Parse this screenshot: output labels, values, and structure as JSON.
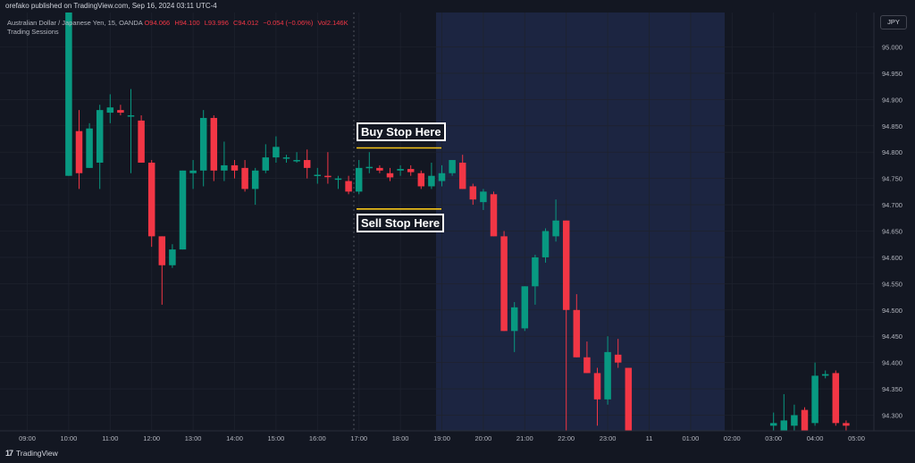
{
  "header": {
    "published": "orefako published on TradingView.com, Sep 16, 2024 03:11 UTC-4"
  },
  "legend": {
    "symbol": "Australian Dollar / Japanese Yen, 15, OANDA",
    "open": "O94.066",
    "high": "H94.100",
    "low": "L93.996",
    "close": "C94.012",
    "change": "−0.054 (−0.06%)",
    "volume": "Vol2.146K",
    "indicator": "Trading Sessions"
  },
  "currency_button": "JPY",
  "footer": {
    "brand": "TradingView",
    "logo_text": "17"
  },
  "annotations": {
    "buy_stop": "Buy Stop Here",
    "sell_stop": "Sell Stop Here"
  },
  "colors": {
    "background": "#131722",
    "up": "#089981",
    "down": "#f23645",
    "session": "#1c2541",
    "stop_line": "#f5c518",
    "grid": "#1e222d"
  },
  "chart_data": {
    "type": "candlestick",
    "title": "Australian Dollar / Japanese Yen, 15, OANDA",
    "xlabel": "",
    "ylabel": "",
    "ylim": [
      94.27,
      95.07
    ],
    "y_ticks": [
      "95.000",
      "94.950",
      "94.900",
      "94.850",
      "94.800",
      "94.750",
      "94.700",
      "94.650",
      "94.600",
      "94.550",
      "94.500",
      "94.450",
      "94.400",
      "94.350",
      "94.300"
    ],
    "x_ticks": [
      "09:00",
      "10:00",
      "11:00",
      "12:00",
      "13:00",
      "14:00",
      "15:00",
      "16:00",
      "17:00",
      "18:00",
      "19:00",
      "20:00",
      "21:00",
      "22:00",
      "23:00",
      "11",
      "01:00",
      "02:00",
      "03:00",
      "04:00",
      "05:00"
    ],
    "stop_levels": {
      "buy_stop": 94.808,
      "sell_stop": 94.692
    },
    "candles": [
      {
        "time": "10:00",
        "o": 94.755,
        "h": 95.07,
        "l": 94.755,
        "c": 95.07
      },
      {
        "time": "10:15",
        "o": 94.84,
        "h": 94.88,
        "l": 94.73,
        "c": 94.76
      },
      {
        "time": "10:30",
        "o": 94.77,
        "h": 94.855,
        "l": 94.77,
        "c": 94.845
      },
      {
        "time": "10:45",
        "o": 94.78,
        "h": 94.89,
        "l": 94.73,
        "c": 94.88
      },
      {
        "time": "11:00",
        "o": 94.875,
        "h": 94.91,
        "l": 94.855,
        "c": 94.885
      },
      {
        "time": "11:15",
        "o": 94.88,
        "h": 94.89,
        "l": 94.87,
        "c": 94.875
      },
      {
        "time": "11:30",
        "o": 94.87,
        "h": 94.92,
        "l": 94.76,
        "c": 94.87
      },
      {
        "time": "11:45",
        "o": 94.86,
        "h": 94.87,
        "l": 94.78,
        "c": 94.78
      },
      {
        "time": "12:00",
        "o": 94.78,
        "h": 94.785,
        "l": 94.62,
        "c": 94.64
      },
      {
        "time": "12:15",
        "o": 94.64,
        "h": 94.64,
        "l": 94.51,
        "c": 94.585
      },
      {
        "time": "12:30",
        "o": 94.585,
        "h": 94.625,
        "l": 94.58,
        "c": 94.615
      },
      {
        "time": "12:45",
        "o": 94.615,
        "h": 94.765,
        "l": 94.615,
        "c": 94.765
      },
      {
        "time": "13:00",
        "o": 94.76,
        "h": 94.785,
        "l": 94.73,
        "c": 94.765
      },
      {
        "time": "13:15",
        "o": 94.765,
        "h": 94.88,
        "l": 94.735,
        "c": 94.865
      },
      {
        "time": "13:30",
        "o": 94.865,
        "h": 94.87,
        "l": 94.745,
        "c": 94.765
      },
      {
        "time": "13:45",
        "o": 94.765,
        "h": 94.82,
        "l": 94.745,
        "c": 94.775
      },
      {
        "time": "14:00",
        "o": 94.775,
        "h": 94.785,
        "l": 94.75,
        "c": 94.765
      },
      {
        "time": "14:15",
        "o": 94.77,
        "h": 94.785,
        "l": 94.725,
        "c": 94.73
      },
      {
        "time": "14:30",
        "o": 94.73,
        "h": 94.77,
        "l": 94.7,
        "c": 94.765
      },
      {
        "time": "14:45",
        "o": 94.765,
        "h": 94.815,
        "l": 94.76,
        "c": 94.79
      },
      {
        "time": "15:00",
        "o": 94.79,
        "h": 94.83,
        "l": 94.78,
        "c": 94.81
      },
      {
        "time": "15:15",
        "o": 94.79,
        "h": 94.795,
        "l": 94.78,
        "c": 94.79
      },
      {
        "time": "15:30",
        "o": 94.785,
        "h": 94.8,
        "l": 94.78,
        "c": 94.785
      },
      {
        "time": "15:45",
        "o": 94.785,
        "h": 94.805,
        "l": 94.75,
        "c": 94.77
      },
      {
        "time": "16:00",
        "o": 94.755,
        "h": 94.77,
        "l": 94.74,
        "c": 94.757
      },
      {
        "time": "16:15",
        "o": 94.755,
        "h": 94.8,
        "l": 94.74,
        "c": 94.753
      },
      {
        "time": "16:30",
        "o": 94.75,
        "h": 94.755,
        "l": 94.73,
        "c": 94.75
      },
      {
        "time": "16:45",
        "o": 94.745,
        "h": 94.755,
        "l": 94.72,
        "c": 94.725
      },
      {
        "time": "17:00",
        "o": 94.725,
        "h": 94.785,
        "l": 94.72,
        "c": 94.77
      },
      {
        "time": "17:15",
        "o": 94.77,
        "h": 94.8,
        "l": 94.76,
        "c": 94.772
      },
      {
        "time": "17:30",
        "o": 94.77,
        "h": 94.775,
        "l": 94.76,
        "c": 94.765
      },
      {
        "time": "17:45",
        "o": 94.76,
        "h": 94.77,
        "l": 94.745,
        "c": 94.752
      },
      {
        "time": "18:00",
        "o": 94.765,
        "h": 94.775,
        "l": 94.755,
        "c": 94.768
      },
      {
        "time": "18:15",
        "o": 94.768,
        "h": 94.775,
        "l": 94.755,
        "c": 94.762
      },
      {
        "time": "18:30",
        "o": 94.76,
        "h": 94.765,
        "l": 94.73,
        "c": 94.735
      },
      {
        "time": "18:45",
        "o": 94.735,
        "h": 94.78,
        "l": 94.73,
        "c": 94.755
      },
      {
        "time": "19:00",
        "o": 94.745,
        "h": 94.775,
        "l": 94.735,
        "c": 94.76
      },
      {
        "time": "19:15",
        "o": 94.76,
        "h": 94.785,
        "l": 94.755,
        "c": 94.785
      },
      {
        "time": "19:30",
        "o": 94.78,
        "h": 94.795,
        "l": 94.73,
        "c": 94.73
      },
      {
        "time": "19:45",
        "o": 94.735,
        "h": 94.74,
        "l": 94.7,
        "c": 94.71
      },
      {
        "time": "20:00",
        "o": 94.705,
        "h": 94.73,
        "l": 94.69,
        "c": 94.725
      },
      {
        "time": "20:15",
        "o": 94.72,
        "h": 94.725,
        "l": 94.64,
        "c": 94.64
      },
      {
        "time": "20:30",
        "o": 94.64,
        "h": 94.65,
        "l": 94.46,
        "c": 94.46
      },
      {
        "time": "20:45",
        "o": 94.46,
        "h": 94.515,
        "l": 94.42,
        "c": 94.505
      },
      {
        "time": "21:00",
        "o": 94.465,
        "h": 94.545,
        "l": 94.46,
        "c": 94.545
      },
      {
        "time": "21:15",
        "o": 94.545,
        "h": 94.605,
        "l": 94.51,
        "c": 94.6
      },
      {
        "time": "21:30",
        "o": 94.6,
        "h": 94.655,
        "l": 94.59,
        "c": 94.65
      },
      {
        "time": "21:45",
        "o": 94.64,
        "h": 94.71,
        "l": 94.63,
        "c": 94.67
      },
      {
        "time": "22:00",
        "o": 94.67,
        "h": 94.67,
        "l": 94.27,
        "c": 94.5
      },
      {
        "time": "22:15",
        "o": 94.5,
        "h": 94.53,
        "l": 94.41,
        "c": 94.41
      },
      {
        "time": "22:30",
        "o": 94.41,
        "h": 94.44,
        "l": 94.38,
        "c": 94.38
      },
      {
        "time": "22:45",
        "o": 94.38,
        "h": 94.39,
        "l": 94.28,
        "c": 94.33
      },
      {
        "time": "23:00",
        "o": 94.33,
        "h": 94.45,
        "l": 94.32,
        "c": 94.42
      },
      {
        "time": "23:15",
        "o": 94.415,
        "h": 94.445,
        "l": 94.39,
        "c": 94.4
      },
      {
        "time": "23:30",
        "o": 94.39,
        "h": 94.39,
        "l": 94.27,
        "c": 94.27
      },
      {
        "time": "03:00",
        "o": 94.28,
        "h": 94.305,
        "l": 94.27,
        "c": 94.285
      },
      {
        "time": "03:15",
        "o": 94.27,
        "h": 94.34,
        "l": 94.27,
        "c": 94.29
      },
      {
        "time": "03:30",
        "o": 94.28,
        "h": 94.32,
        "l": 94.27,
        "c": 94.3
      },
      {
        "time": "03:45",
        "o": 94.31,
        "h": 94.315,
        "l": 94.27,
        "c": 94.27
      },
      {
        "time": "04:00",
        "o": 94.285,
        "h": 94.4,
        "l": 94.28,
        "c": 94.375
      },
      {
        "time": "04:15",
        "o": 94.375,
        "h": 94.385,
        "l": 94.37,
        "c": 94.378
      },
      {
        "time": "04:30",
        "o": 94.38,
        "h": 94.385,
        "l": 94.28,
        "c": 94.285
      },
      {
        "time": "04:45",
        "o": 94.285,
        "h": 94.29,
        "l": 94.27,
        "c": 94.28
      }
    ]
  }
}
